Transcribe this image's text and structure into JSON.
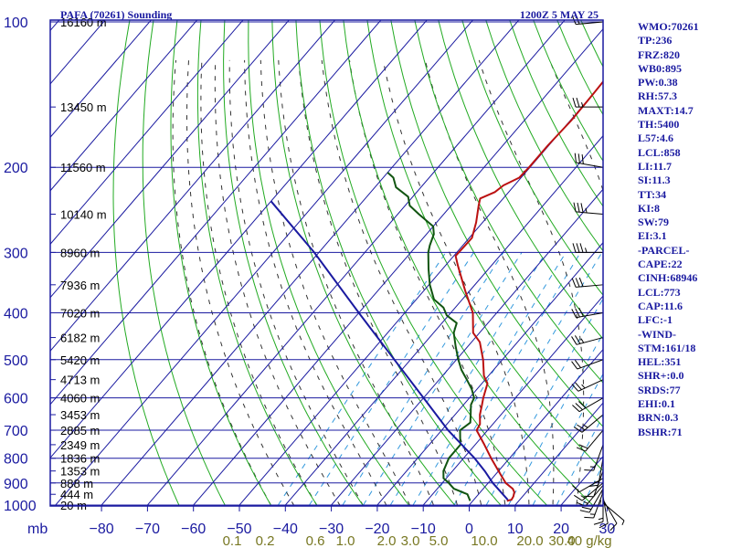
{
  "header": {
    "station": "PAFA (70261) Sounding",
    "datetime": "1200Z  5 MAY 25"
  },
  "colors": {
    "frame": "#1a1aa0",
    "isobar": "#1a1aa0",
    "isotherm": "#1a1aa0",
    "dry_adiabat": "#22aa22",
    "moist_adiabat": "#333333",
    "mixing_ratio": "#3399dd",
    "temperature": "#bb1111",
    "dewpoint": "#115511",
    "parcel": "#1a1aa0",
    "wind_barb": "#000000"
  },
  "chart_data": {
    "type": "line",
    "diagram": "skew-T log-P",
    "y_axis": {
      "label": "mb",
      "scale": "log",
      "ylim": [
        1000,
        100
      ],
      "ticks": [
        100,
        200,
        300,
        400,
        500,
        600,
        700,
        800,
        900,
        1000
      ]
    },
    "x_axis": {
      "label": "",
      "unit": "°C",
      "xlim": [
        -80,
        30
      ],
      "ticks": [
        -80,
        -70,
        -60,
        -50,
        -40,
        -30,
        -20,
        -10,
        0,
        10,
        20,
        30
      ]
    },
    "height_labels": [
      {
        "p": 100,
        "label": "16160 m"
      },
      {
        "p": 150,
        "label": "13450 m"
      },
      {
        "p": 200,
        "label": "11560 m"
      },
      {
        "p": 250,
        "label": "10140 m"
      },
      {
        "p": 300,
        "label": "8960 m"
      },
      {
        "p": 350,
        "label": "7936 m"
      },
      {
        "p": 400,
        "label": "7020 m"
      },
      {
        "p": 450,
        "label": "6182 m"
      },
      {
        "p": 500,
        "label": "5420 m"
      },
      {
        "p": 550,
        "label": "4713 m"
      },
      {
        "p": 600,
        "label": "4060 m"
      },
      {
        "p": 650,
        "label": "3453 m"
      },
      {
        "p": 700,
        "label": "2885 m"
      },
      {
        "p": 750,
        "label": "2349 m"
      },
      {
        "p": 800,
        "label": "1836 m"
      },
      {
        "p": 850,
        "label": "1353 m"
      },
      {
        "p": 900,
        "label": "888 m"
      },
      {
        "p": 950,
        "label": "444 m"
      },
      {
        "p": 1000,
        "label": "20 m"
      }
    ],
    "mixing_ratio_labels": [
      "0.1",
      "0.2",
      "0.6",
      "1.0",
      "2.0",
      "3.0",
      "5.0",
      "10.0",
      "20.0",
      "30.0",
      "40 g/kg"
    ],
    "series": [
      {
        "key": "temperature",
        "points": [
          [
            980,
            7.4
          ],
          [
            975,
            8.2
          ],
          [
            960,
            8.0
          ],
          [
            940,
            7.4
          ],
          [
            925,
            6.4
          ],
          [
            900,
            3.8
          ],
          [
            850,
            0.0
          ],
          [
            800,
            -4.0
          ],
          [
            750,
            -8.0
          ],
          [
            700,
            -12.4
          ],
          [
            680,
            -12.8
          ],
          [
            650,
            -14.6
          ],
          [
            620,
            -16.0
          ],
          [
            600,
            -17.0
          ],
          [
            560,
            -18.8
          ],
          [
            540,
            -21.0
          ],
          [
            500,
            -24.2
          ],
          [
            460,
            -28.2
          ],
          [
            440,
            -31.4
          ],
          [
            400,
            -35.2
          ],
          [
            360,
            -41.0
          ],
          [
            320,
            -47.2
          ],
          [
            305,
            -49.6
          ],
          [
            280,
            -49.4
          ],
          [
            260,
            -51.4
          ],
          [
            240,
            -54.0
          ],
          [
            232,
            -55.0
          ],
          [
            225,
            -53.0
          ],
          [
            218,
            -52.4
          ],
          [
            210,
            -50.4
          ],
          [
            200,
            -50.2
          ],
          [
            180,
            -50.2
          ],
          [
            160,
            -49.8
          ],
          [
            140,
            -50.0
          ],
          [
            120,
            -50.4
          ],
          [
            105,
            -51.0
          ],
          [
            100,
            -51.4
          ]
        ]
      },
      {
        "key": "dewpoint",
        "points": [
          [
            980,
            -0.6
          ],
          [
            950,
            -2.4
          ],
          [
            925,
            -6.4
          ],
          [
            900,
            -8.6
          ],
          [
            880,
            -10.6
          ],
          [
            850,
            -12.0
          ],
          [
            800,
            -13.2
          ],
          [
            750,
            -13.2
          ],
          [
            725,
            -14.6
          ],
          [
            700,
            -16.0
          ],
          [
            675,
            -15.2
          ],
          [
            650,
            -16.6
          ],
          [
            620,
            -18.4
          ],
          [
            600,
            -19.0
          ],
          [
            575,
            -21.2
          ],
          [
            550,
            -24.0
          ],
          [
            525,
            -27.0
          ],
          [
            500,
            -29.6
          ],
          [
            470,
            -32.6
          ],
          [
            440,
            -35.6
          ],
          [
            420,
            -36.8
          ],
          [
            405,
            -40.4
          ],
          [
            390,
            -42.6
          ],
          [
            375,
            -46.2
          ],
          [
            350,
            -49.8
          ],
          [
            325,
            -53.0
          ],
          [
            300,
            -56.2
          ],
          [
            290,
            -57.2
          ],
          [
            275,
            -58.4
          ],
          [
            265,
            -60.0
          ],
          [
            250,
            -65.4
          ],
          [
            240,
            -69.0
          ],
          [
            230,
            -71.0
          ],
          [
            220,
            -75.4
          ],
          [
            210,
            -77.8
          ],
          [
            205,
            -80.0
          ]
        ]
      },
      {
        "key": "parcel",
        "points": [
          [
            975,
            7.4
          ],
          [
            900,
            1.0
          ],
          [
            850,
            -3.0
          ],
          [
            800,
            -7.6
          ],
          [
            700,
            -18.6
          ],
          [
            600,
            -30.0
          ],
          [
            500,
            -43.5
          ],
          [
            400,
            -60.0
          ],
          [
            300,
            -81.0
          ],
          [
            235,
            -100.0
          ]
        ]
      }
    ],
    "wind_barbs": [
      {
        "p": 990,
        "dir": 130,
        "spd": 5
      },
      {
        "p": 975,
        "dir": 150,
        "spd": 10
      },
      {
        "p": 960,
        "dir": 170,
        "spd": 10
      },
      {
        "p": 950,
        "dir": 180,
        "spd": 15
      },
      {
        "p": 940,
        "dir": 200,
        "spd": 15
      },
      {
        "p": 925,
        "dir": 210,
        "spd": 20
      },
      {
        "p": 910,
        "dir": 220,
        "spd": 15
      },
      {
        "p": 900,
        "dir": 230,
        "spd": 15
      },
      {
        "p": 880,
        "dir": 240,
        "spd": 10
      },
      {
        "p": 850,
        "dir": 200,
        "spd": 10
      },
      {
        "p": 800,
        "dir": 190,
        "spd": 15
      },
      {
        "p": 750,
        "dir": 200,
        "spd": 15
      },
      {
        "p": 700,
        "dir": 220,
        "spd": 20
      },
      {
        "p": 650,
        "dir": 230,
        "spd": 25
      },
      {
        "p": 600,
        "dir": 240,
        "spd": 30
      },
      {
        "p": 550,
        "dir": 245,
        "spd": 25
      },
      {
        "p": 500,
        "dir": 250,
        "spd": 20
      },
      {
        "p": 450,
        "dir": 255,
        "spd": 25
      },
      {
        "p": 400,
        "dir": 260,
        "spd": 30
      },
      {
        "p": 350,
        "dir": 265,
        "spd": 30
      },
      {
        "p": 300,
        "dir": 270,
        "spd": 35
      },
      {
        "p": 250,
        "dir": 275,
        "spd": 35
      },
      {
        "p": 200,
        "dir": 280,
        "spd": 30
      },
      {
        "p": 150,
        "dir": 270,
        "spd": 25
      },
      {
        "p": 100,
        "dir": 265,
        "spd": 20
      }
    ]
  },
  "indices": [
    "WMO:70261",
    "TP:236",
    "FRZ:820",
    "WB0:895",
    "PW:0.38",
    "RH:57.3",
    "MAXT:14.7",
    "TH:5400",
    "L57:4.6",
    "LCL:858",
    "LI:11.7",
    "SI:11.3",
    "TT:34",
    "KI:8",
    "SW:79",
    "EI:3.1",
    "-PARCEL-",
    "CAPE:22",
    "CINH:68946",
    "LCL:773",
    "CAP:11.6",
    "LFC:-1",
    "-WIND-",
    "STM:161/18",
    "HEL:351",
    "SHR+:0.0",
    "SRDS:77",
    "EHI:0.1",
    "BRN:0.3",
    "BSHR:71"
  ]
}
